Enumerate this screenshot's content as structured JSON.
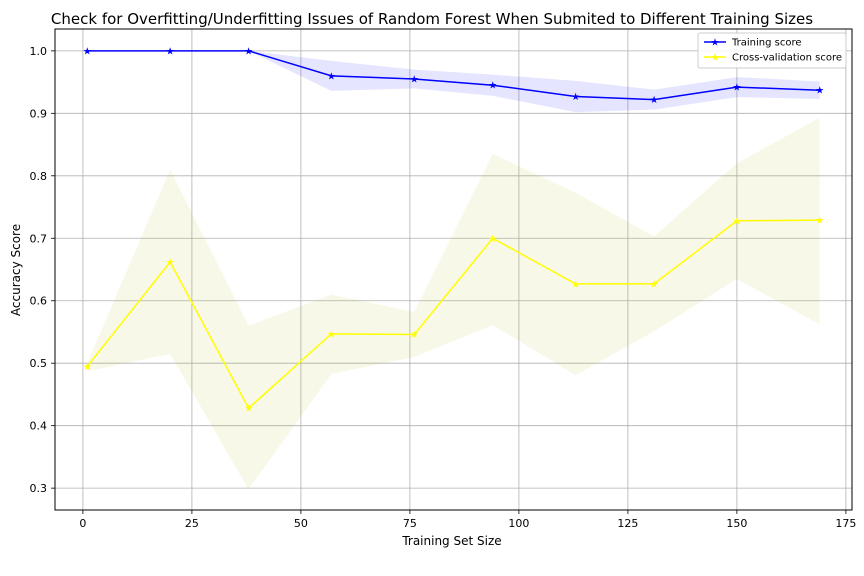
{
  "chart_data": {
    "type": "line",
    "title": "Check for Overfitting/Underfitting Issues of Random Forest When Submited to Different Training Sizes",
    "xlabel": "Training Set Size",
    "ylabel": "Accuracy Score",
    "xlim": [
      -6.4,
      176.4
    ],
    "ylim": [
      0.265,
      1.035
    ],
    "xticks": [
      0,
      25,
      50,
      75,
      100,
      125,
      150,
      175
    ],
    "yticks": [
      0.3,
      0.4,
      0.5,
      0.6,
      0.7,
      0.8,
      0.9,
      1.0
    ],
    "ytick_labels": [
      "0.3",
      "0.4",
      "0.5",
      "0.6",
      "0.7",
      "0.8",
      "0.9",
      "1.0"
    ],
    "grid": true,
    "legend_position": "top-right",
    "x": [
      1,
      20,
      38,
      57,
      76,
      94,
      113,
      131,
      150,
      169
    ],
    "series": [
      {
        "name": "Training score",
        "color": "#0000ff",
        "band_color": "#0000ff",
        "marker": "star",
        "values": [
          1.0,
          1.0,
          1.0,
          0.96,
          0.955,
          0.945,
          0.927,
          0.922,
          0.942,
          0.937
        ],
        "upper": [
          1.0,
          1.0,
          1.0,
          0.984,
          0.97,
          0.962,
          0.952,
          0.938,
          0.958,
          0.951
        ],
        "lower": [
          1.0,
          1.0,
          1.0,
          0.936,
          0.94,
          0.928,
          0.902,
          0.906,
          0.926,
          0.923
        ]
      },
      {
        "name": "Cross-validation score",
        "color": "#ffff00",
        "band_color": "#bdbd29",
        "marker": "star",
        "values": [
          0.495,
          0.662,
          0.428,
          0.547,
          0.546,
          0.7,
          0.627,
          0.627,
          0.728,
          0.729
        ],
        "upper": [
          0.5,
          0.81,
          0.56,
          0.61,
          0.582,
          0.835,
          0.773,
          0.703,
          0.82,
          0.893
        ],
        "lower": [
          0.487,
          0.515,
          0.298,
          0.483,
          0.51,
          0.561,
          0.481,
          0.551,
          0.635,
          0.562
        ]
      }
    ]
  }
}
